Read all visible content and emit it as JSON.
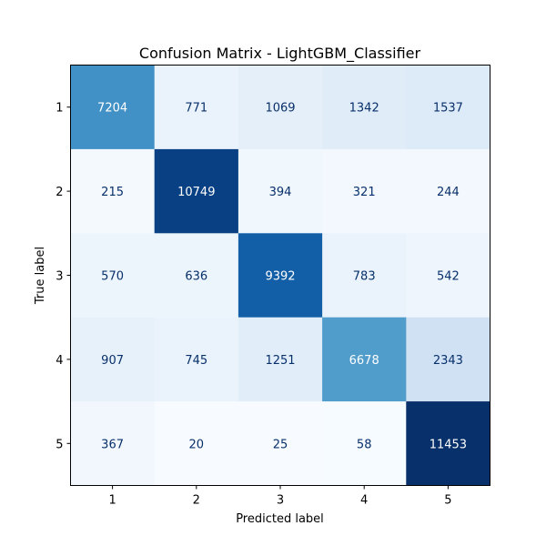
{
  "chart_data": {
    "type": "heatmap",
    "title": "Confusion Matrix - LightGBM_Classifier",
    "xlabel": "Predicted label",
    "ylabel": "True label",
    "x_categories": [
      "1",
      "2",
      "3",
      "4",
      "5"
    ],
    "y_categories": [
      "1",
      "2",
      "3",
      "4",
      "5"
    ],
    "values": [
      [
        7204,
        771,
        1069,
        1342,
        1537
      ],
      [
        215,
        10749,
        394,
        321,
        244
      ],
      [
        570,
        636,
        9392,
        783,
        542
      ],
      [
        907,
        745,
        1251,
        6678,
        2343
      ],
      [
        367,
        20,
        25,
        58,
        11453
      ]
    ],
    "value_labels": [
      [
        "7204",
        "771",
        "1069",
        "1342",
        "1537"
      ],
      [
        "215",
        "10749",
        "394",
        "321",
        "244"
      ],
      [
        "570",
        "636",
        "9392",
        "783",
        "542"
      ],
      [
        "907",
        "745",
        "1251",
        "6678",
        "2343"
      ],
      [
        "367",
        "20",
        "25",
        "58",
        "11453"
      ]
    ],
    "colormap": "Blues",
    "colorbar": false
  }
}
